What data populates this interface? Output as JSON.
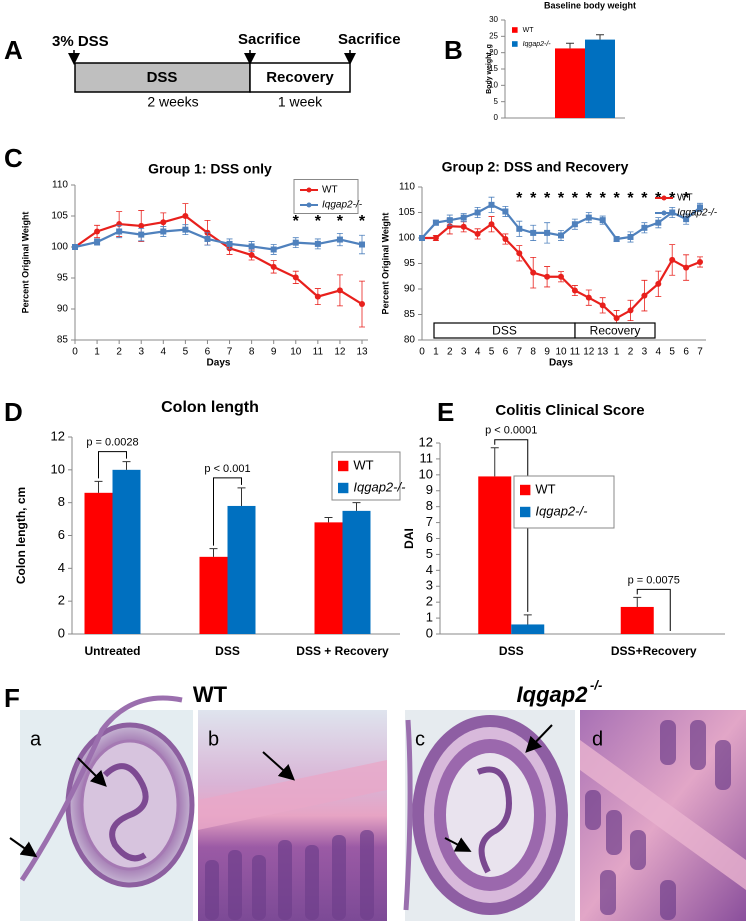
{
  "panel_labels": [
    "A",
    "B",
    "C",
    "D",
    "E",
    "F"
  ],
  "diagram": {
    "start_label": "3% DSS",
    "sacrifice_labels": [
      "Sacrifice",
      "Sacrifice"
    ],
    "phases": [
      "DSS",
      "Recovery"
    ],
    "durations": [
      "2 weeks",
      "1 week"
    ]
  },
  "chart_data": [
    {
      "type": "bar",
      "title": "Baseline body weight",
      "y_label": "Body weight, g",
      "categories": [
        null
      ],
      "series": [
        {
          "name": "WT",
          "color": "#ff0000",
          "values": [
            21.3
          ],
          "errors": [
            1.6
          ]
        },
        {
          "name": "Iqgap2-/-",
          "color": "#0070c0",
          "values": [
            24
          ],
          "errors": [
            1.5
          ]
        }
      ],
      "ylim": [
        0,
        30
      ],
      "yticks": [
        0,
        5,
        10,
        15,
        20,
        25,
        30
      ],
      "legend": "upper left"
    },
    {
      "type": "line",
      "title": "Group 1: DSS only",
      "x_label": "Days",
      "y_label": "Percent Original Weight",
      "x": [
        0,
        1,
        2,
        3,
        4,
        5,
        6,
        7,
        8,
        9,
        10,
        11,
        12,
        13
      ],
      "xlim": [
        0,
        13
      ],
      "xticks": [
        0,
        1,
        2,
        3,
        4,
        5,
        6,
        7,
        8,
        9,
        10,
        11,
        12,
        13
      ],
      "series": [
        {
          "name": "WT",
          "color": "#e8201c",
          "values": [
            100,
            102.5,
            103.7,
            103.4,
            104,
            105,
            102.3,
            99.8,
            98.7,
            96.8,
            95.1,
            92,
            93,
            90.8
          ],
          "errors": [
            0,
            1,
            2,
            2.5,
            1.5,
            2,
            2,
            1,
            0.8,
            1,
            1,
            1.3,
            2.5,
            3.7
          ]
        },
        {
          "name": "Iqgap2-/-",
          "color": "#4f81bd",
          "values": [
            100,
            100.8,
            102.5,
            102,
            102.5,
            102.8,
            101.3,
            100.5,
            100.1,
            99.6,
            100.7,
            100.5,
            101.2,
            100.4
          ],
          "errors": [
            0,
            0.5,
            1,
            1,
            0.8,
            0.8,
            1,
            0.8,
            0.8,
            0.8,
            0.8,
            0.8,
            1,
            1.5
          ]
        }
      ],
      "ylim": [
        85,
        110
      ],
      "yticks": [
        85,
        90,
        95,
        100,
        105,
        110
      ],
      "legend": "upper right",
      "asterisks": {
        "text": "*",
        "x": [
          10,
          11,
          12,
          13
        ]
      }
    },
    {
      "type": "line",
      "title": "Group 2: DSS and Recovery",
      "x_label": "Days",
      "y_label": "Percent Original Weight",
      "categories": [
        "0",
        "1",
        "2",
        "3",
        "4",
        "5",
        "6",
        "7",
        "8",
        "9",
        "10",
        "11",
        "12",
        "13",
        "1",
        "2",
        "3",
        "4",
        "5",
        "6",
        "7"
      ],
      "series": [
        {
          "name": "WT",
          "color": "#e8201c",
          "values": [
            100,
            100,
            102.3,
            102.2,
            100.8,
            102.7,
            99.8,
            97,
            93.2,
            92.4,
            92.4,
            89.7,
            88.3,
            86.8,
            84.3,
            85.8,
            88.7,
            91,
            95.7,
            94.2,
            95.3
          ],
          "errors": [
            0,
            0.5,
            1.5,
            1,
            1,
            1.5,
            1,
            1.5,
            3,
            2,
            1,
            1,
            1.5,
            1.5,
            1.5,
            2,
            3,
            2.5,
            3,
            2.5,
            1
          ]
        },
        {
          "name": "Iqgap2-/-",
          "color": "#4f81bd",
          "values": [
            100,
            103,
            103.5,
            104,
            105,
            106.5,
            105.2,
            101.8,
            101,
            101,
            100.5,
            102.7,
            104,
            103.5,
            99.8,
            100.2,
            102,
            103,
            105,
            103.7,
            106
          ],
          "errors": [
            0,
            0.5,
            1,
            0.8,
            1,
            1.5,
            1,
            1.5,
            1.5,
            2,
            1,
            1,
            1,
            0.8,
            0.5,
            1,
            1,
            1,
            1,
            1,
            0.8
          ]
        }
      ],
      "ylim": [
        80,
        110
      ],
      "yticks": [
        80,
        85,
        90,
        95,
        100,
        105,
        110
      ],
      "legend": "upper right",
      "asterisks": {
        "text": "*",
        "x": [
          7,
          8,
          9,
          10,
          11,
          12,
          13,
          14,
          15,
          16,
          17,
          18,
          19
        ]
      },
      "phase_labels": [
        "DSS",
        "Recovery"
      ]
    },
    {
      "type": "bar",
      "title": "Colon length",
      "y_label": "Colon length, cm",
      "categories": [
        "Untreated",
        "DSS",
        "DSS + Recovery"
      ],
      "series": [
        {
          "name": "WT",
          "color": "#ff0000",
          "values": [
            8.6,
            4.7,
            6.8
          ],
          "errors": [
            0.7,
            0.5,
            0.3
          ]
        },
        {
          "name": "Iqgap2-/-",
          "color": "#0070c0",
          "values": [
            10,
            7.8,
            7.5
          ],
          "errors": [
            0.5,
            1.1,
            0.5
          ]
        }
      ],
      "ylim": [
        0,
        12
      ],
      "yticks": [
        0,
        2,
        4,
        6,
        8,
        10,
        12
      ],
      "legend": "upper right",
      "brackets": [
        {
          "text": "p = 0.0028",
          "category": 0
        },
        {
          "text": "p < 0.001",
          "category": 1
        }
      ]
    },
    {
      "type": "bar",
      "title": "Colitis Clinical Score",
      "y_label": "DAI",
      "categories": [
        "DSS",
        "DSS+Recovery"
      ],
      "series": [
        {
          "name": "WT",
          "color": "#ff0000",
          "values": [
            9.9,
            1.7
          ],
          "errors": [
            1.8,
            0.6
          ]
        },
        {
          "name": "Iqgap2-/-",
          "color": "#0070c0",
          "values": [
            0.6,
            0
          ],
          "errors": [
            0.6,
            null
          ]
        }
      ],
      "ylim": [
        0,
        12
      ],
      "yticks": [
        0,
        1,
        2,
        3,
        4,
        5,
        6,
        7,
        8,
        9,
        10,
        11,
        12
      ],
      "legend": "upper right",
      "brackets": [
        {
          "text": "p < 0.0001",
          "category": 0
        },
        {
          "text": "p = 0.0075",
          "category": 1
        }
      ]
    }
  ],
  "histology": {
    "groups": [
      {
        "title": "WT"
      },
      {
        "title": "Iqgap2",
        "title_superscript": "-/-"
      }
    ],
    "image_labels": [
      "a",
      "b",
      "c",
      "d"
    ]
  }
}
